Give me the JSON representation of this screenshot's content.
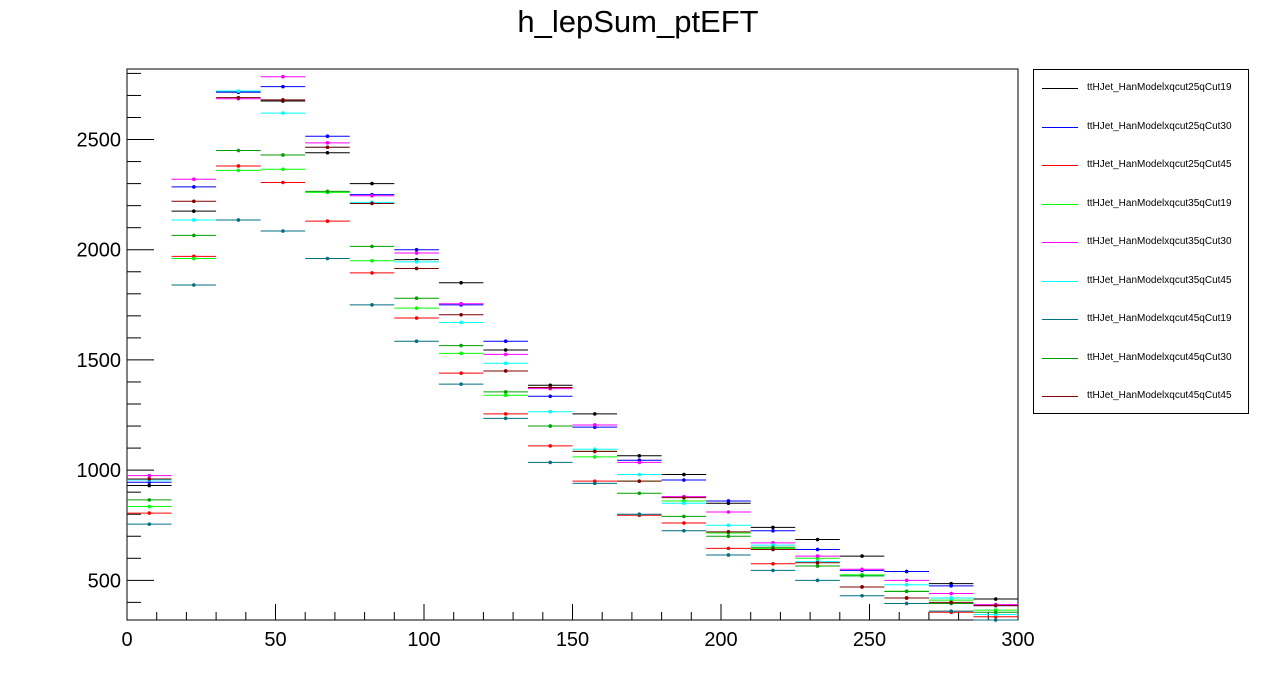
{
  "chart_data": {
    "type": "scatter",
    "title": "h_lepSum_ptEFT",
    "xlabel": "",
    "ylabel": "",
    "xlim": [
      0,
      300
    ],
    "ylim": [
      320,
      2820
    ],
    "bin_width": 15,
    "x": [
      7.5,
      22.5,
      37.5,
      52.5,
      67.5,
      82.5,
      97.5,
      112.5,
      127.5,
      142.5,
      157.5,
      172.5,
      187.5,
      202.5,
      217.5,
      232.5,
      247.5,
      262.5,
      277.5,
      292.5
    ],
    "x_ticks": [
      0,
      50,
      100,
      150,
      200,
      250,
      300
    ],
    "y_ticks": [
      500,
      1000,
      1500,
      2000,
      2500
    ],
    "legend_position": "top-right",
    "series": [
      {
        "name": "ttHJet_HanModelxqcut25qCut19",
        "color": "#000000",
        "values": [
          930,
          2175,
          2715,
          2675,
          2440,
          2300,
          1955,
          1850,
          1545,
          1385,
          1255,
          1065,
          980,
          850,
          740,
          685,
          610,
          540,
          485,
          415
        ]
      },
      {
        "name": "ttHJet_HanModelxqcut25qCut30",
        "color": "#0000ff",
        "values": [
          945,
          2285,
          2715,
          2740,
          2515,
          2250,
          2000,
          1750,
          1585,
          1335,
          1195,
          1045,
          955,
          860,
          725,
          640,
          545,
          540,
          475,
          385
        ]
      },
      {
        "name": "ttHJet_HanModelxqcut25qCut45",
        "color": "#ff0000",
        "values": [
          805,
          1970,
          2380,
          2305,
          2130,
          1895,
          1690,
          1440,
          1255,
          1110,
          950,
          795,
          760,
          645,
          575,
          565,
          470,
          420,
          355,
          335
        ]
      },
      {
        "name": "ttHJet_HanModelxqcut35qCut19",
        "color": "#00ff00",
        "values": [
          835,
          1960,
          2360,
          2365,
          2260,
          1950,
          1735,
          1530,
          1340,
          1200,
          1060,
          950,
          860,
          715,
          645,
          600,
          525,
          450,
          410,
          365
        ]
      },
      {
        "name": "ttHJet_HanModelxqcut35qCut30",
        "color": "#ff00ff",
        "values": [
          975,
          2320,
          2685,
          2785,
          2485,
          2245,
          1985,
          1755,
          1525,
          1370,
          1205,
          1035,
          880,
          810,
          670,
          610,
          550,
          500,
          440,
          390
        ]
      },
      {
        "name": "ttHJet_HanModelxqcut35qCut45",
        "color": "#00ffff",
        "values": [
          955,
          2135,
          2720,
          2620,
          2465,
          2215,
          1945,
          1670,
          1485,
          1265,
          1095,
          980,
          850,
          750,
          660,
          585,
          520,
          480,
          420,
          345
        ]
      },
      {
        "name": "ttHJet_HanModelxqcut45qCut19",
        "color": "#006f80",
        "values": [
          755,
          1840,
          2135,
          2085,
          1960,
          1750,
          1585,
          1390,
          1235,
          1035,
          940,
          800,
          725,
          615,
          545,
          500,
          430,
          395,
          360,
          320
        ]
      },
      {
        "name": "ttHJet_HanModelxqcut45qCut30",
        "color": "#00a000",
        "values": [
          865,
          2065,
          2450,
          2430,
          2265,
          2015,
          1780,
          1565,
          1355,
          1200,
          1085,
          895,
          790,
          700,
          650,
          565,
          520,
          450,
          395,
          355
        ]
      },
      {
        "name": "ttHJet_HanModelxqcut45qCut45",
        "color": "#800000",
        "values": [
          960,
          2220,
          2690,
          2680,
          2465,
          2210,
          1915,
          1705,
          1450,
          1375,
          1085,
          950,
          875,
          720,
          640,
          580,
          470,
          420,
          400,
          385
        ]
      }
    ]
  }
}
